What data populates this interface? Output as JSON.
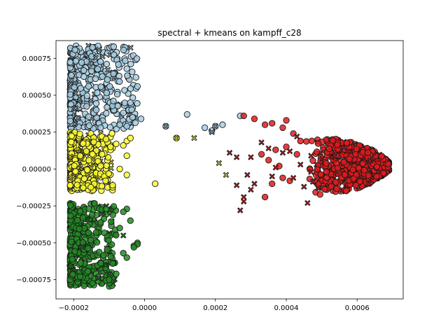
{
  "chart_data": {
    "type": "scatter",
    "title": "spectral + kmeans on kampff_c28",
    "xlabel": "",
    "ylabel": "",
    "xlim": [
      -0.00025,
      0.00073
    ],
    "ylim": [
      -0.00088,
      0.00087
    ],
    "xticks": [
      -0.0002,
      0.0,
      0.0002,
      0.0004,
      0.0006
    ],
    "xtick_labels": [
      "−0.0002",
      "0.0000",
      "0.0002",
      "0.0004",
      "0.0006"
    ],
    "yticks": [
      -0.00075,
      -0.0005,
      -0.00025,
      0.0,
      0.00025,
      0.0005,
      0.00075
    ],
    "ytick_labels": [
      "−0.00075",
      "−0.00050",
      "−0.00025",
      "0.00000",
      "0.00025",
      "0.00050",
      "0.00075"
    ],
    "grid": false,
    "legend": "none",
    "markers": {
      "circle": "cluster member",
      "x": "alternate marker"
    },
    "series": [
      {
        "color": "#a6cee3",
        "clusters_region": {
          "x": [
            -0.00021,
            -2e-05
          ],
          "y": [
            0.00027,
            0.00084
          ]
        },
        "values": [
          [
            -5e-05,
            0.00068
          ],
          [
            -2e-05,
            0.00056
          ],
          [
            -4e-05,
            0.00045
          ],
          [
            -6e-05,
            0.00038
          ],
          [
            -1e-05,
            0.00034
          ],
          [
            -7e-05,
            0.0003
          ],
          [
            -5e-05,
            0.00029
          ],
          [
            6e-05,
            0.00029
          ],
          [
            0.00012,
            0.00037
          ],
          [
            0.00017,
            0.00028
          ],
          [
            0.00019,
            0.00026
          ],
          [
            0.0002,
            0.00029
          ],
          [
            0.00022,
            0.0003
          ],
          [
            0.00027,
            0.00036
          ]
        ],
        "x_markers": [
          [
            6e-05,
            0.00029
          ],
          [
            0.0002,
            0.00029
          ],
          [
            0.00019,
            0.00025
          ]
        ]
      },
      {
        "color": "#ffff33",
        "clusters_region": {
          "x": [
            -0.00021,
            -9e-05
          ],
          "y": [
            -0.00015,
            0.00025
          ]
        },
        "values": [
          [
            -8e-05,
            0.00017
          ],
          [
            -6e-05,
            0.00016
          ],
          [
            -5e-05,
            9e-05
          ],
          [
            -0.00012,
            0.0001
          ],
          [
            -7e-05,
            0.0
          ],
          [
            -5e-05,
            -4e-05
          ],
          [
            -0.00011,
            -8e-05
          ],
          [
            -9e-05,
            -0.00011
          ],
          [
            -5e-05,
            0.00019
          ],
          [
            3e-05,
            -0.0001
          ],
          [
            -4e-05,
            0.00021
          ],
          [
            9e-05,
            0.00021
          ]
        ],
        "x_markers": [
          [
            0.00014,
            0.00021
          ],
          [
            0.00021,
            4e-05
          ],
          [
            0.00023,
            -4e-05
          ],
          [
            9e-05,
            0.00021
          ]
        ]
      },
      {
        "color": "#228b22",
        "clusters_region": {
          "x": [
            -0.00021,
            -8e-05
          ],
          "y": [
            -0.0008,
            -0.00023
          ]
        },
        "values": [
          [
            -5e-05,
            -0.00027
          ],
          [
            -6e-05,
            -0.00029
          ],
          [
            -4e-05,
            -0.00035
          ],
          [
            -7e-05,
            -0.0004
          ],
          [
            -2e-05,
            -0.0005
          ],
          [
            -3e-05,
            -0.00052
          ],
          [
            -2e-05,
            -0.00051
          ],
          [
            -3e-05,
            -0.00053
          ],
          [
            -5e-05,
            -0.0006
          ],
          [
            -6e-05,
            -0.00057
          ],
          [
            -9e-05,
            -0.00064
          ],
          [
            -0.00011,
            -0.00067
          ],
          [
            -8e-05,
            -0.00071
          ],
          [
            -0.0001,
            -0.00075
          ]
        ],
        "x_markers": [
          [
            -6e-05,
            -0.00045
          ],
          [
            -0.0001,
            -0.00071
          ],
          [
            -0.00013,
            -0.00074
          ],
          [
            -0.00011,
            -0.00065
          ]
        ]
      },
      {
        "color": "#e31a1c",
        "clusters_region": {
          "x": [
            0.00045,
            0.00069
          ],
          "y": [
            -0.0002,
            0.00019
          ]
        },
        "values": [
          [
            0.00028,
            0.00036
          ],
          [
            0.00031,
            0.00034
          ],
          [
            0.00034,
            0.0003
          ],
          [
            0.00036,
            0.00031
          ],
          [
            0.00039,
            0.00028
          ],
          [
            0.0004,
            0.00033
          ],
          [
            0.00042,
            0.00024
          ],
          [
            0.0004,
            0.00015
          ],
          [
            0.00037,
            0.00013
          ],
          [
            0.00035,
            6e-05
          ],
          [
            0.00033,
            0.0001
          ],
          [
            0.00034,
            -0.00019
          ],
          [
            0.00036,
            -0.0001
          ],
          [
            0.00039,
            -6e-05
          ],
          [
            0.00041,
            -8e-05
          ],
          [
            0.00038,
            2e-05
          ],
          [
            0.00043,
            0.0001
          ],
          [
            0.00044,
            0.00019
          ]
        ],
        "x_markers": [
          [
            0.00024,
            0.00011
          ],
          [
            0.00026,
            8e-05
          ],
          [
            0.0003,
            8e-05
          ],
          [
            0.00029,
            -4e-05
          ],
          [
            0.00031,
            -0.0001
          ],
          [
            0.00026,
            -0.00011
          ],
          [
            0.0003,
            -0.00014
          ],
          [
            0.00028,
            -0.00022
          ],
          [
            0.00027,
            -0.00028
          ],
          [
            0.00028,
            -0.00019
          ],
          [
            0.00033,
            0.00018
          ],
          [
            0.00035,
            0.00014
          ],
          [
            0.00039,
            0.00011
          ],
          [
            0.00041,
            0.00012
          ],
          [
            0.00043,
            0.00022
          ],
          [
            0.00047,
            9e-05
          ],
          [
            0.00045,
            -0.00012
          ],
          [
            0.00046,
            -0.00023
          ],
          [
            0.00049,
            -0.00013
          ],
          [
            0.00044,
            3e-05
          ],
          [
            0.00037,
            1e-05
          ],
          [
            0.00036,
            -5e-05
          ],
          [
            0.00042,
            -6e-05
          ],
          [
            0.00047,
            -2e-05
          ]
        ]
      }
    ]
  }
}
